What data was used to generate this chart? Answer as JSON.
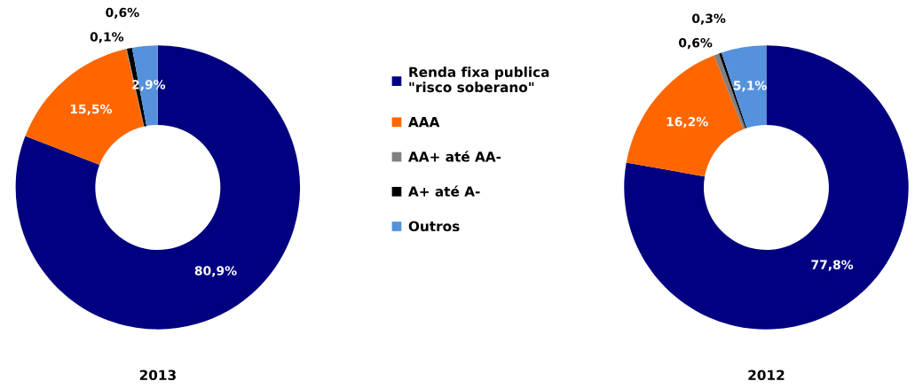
{
  "chart_data": [
    {
      "type": "donut",
      "title": "2013",
      "categories": [
        "Renda fixa publica\n\"risco soberano\"",
        "AAA",
        "AA+ até AA-",
        "A+ até A-",
        "Outros"
      ],
      "values": [
        80.9,
        15.5,
        0.1,
        0.6,
        2.9
      ],
      "value_labels": [
        "80,9%",
        "15,5%",
        "0,1%",
        "0,6%",
        "2,9%"
      ],
      "colors": [
        "#000080",
        "#ff6600",
        "#808080",
        "#000000",
        "#5591dc"
      ],
      "legend": "right"
    },
    {
      "type": "donut",
      "title": "2012",
      "categories": [
        null,
        null,
        null,
        null,
        null
      ],
      "values": [
        77.8,
        16.2,
        0.6,
        0.3,
        5.1
      ],
      "value_labels": [
        "77,8%",
        "16,2%",
        "0,6%",
        "0,3%",
        "5,1%"
      ],
      "colors": [
        "#000080",
        "#ff6600",
        "#808080",
        "#000000",
        "#5591dc"
      ]
    }
  ]
}
